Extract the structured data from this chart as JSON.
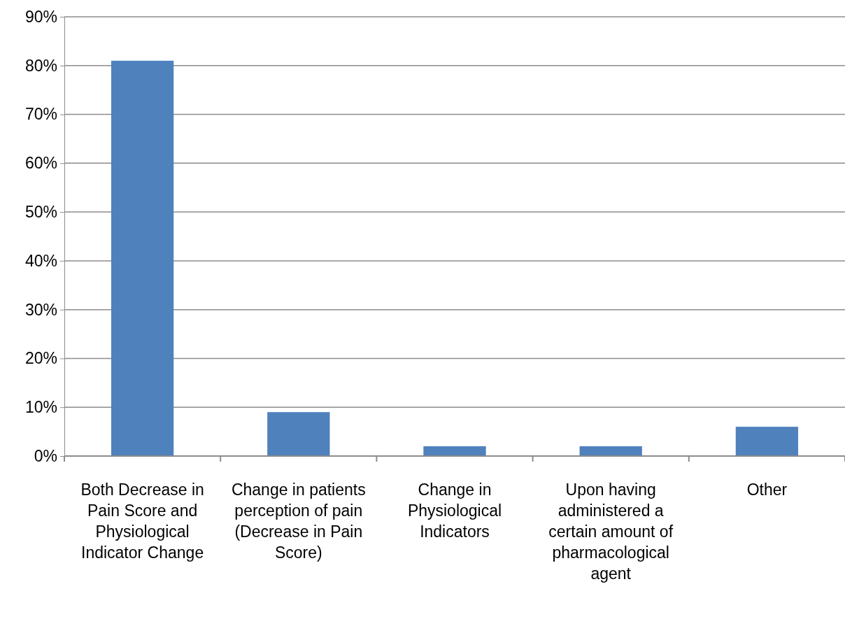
{
  "chart_data": {
    "type": "bar",
    "categories": [
      "Both Decrease in Pain Score and Physiological Indicator Change",
      "Change in patients perception of pain (Decrease in Pain Score)",
      "Change in Physiological Indicators",
      "Upon having administered a certain amount of pharmacological agent",
      "Other"
    ],
    "values": [
      81,
      9,
      2,
      2,
      6
    ],
    "color": "#4f81bd",
    "ylim": [
      0,
      90
    ],
    "yticks": [
      {
        "value": 0,
        "label": "0%"
      },
      {
        "value": 10,
        "label": "10%"
      },
      {
        "value": 20,
        "label": "20%"
      },
      {
        "value": 30,
        "label": "30%"
      },
      {
        "value": 40,
        "label": "40%"
      },
      {
        "value": 50,
        "label": "50%"
      },
      {
        "value": 60,
        "label": "60%"
      },
      {
        "value": 70,
        "label": "70%"
      },
      {
        "value": 80,
        "label": "80%"
      },
      {
        "value": 90,
        "label": "90%"
      }
    ],
    "grid": "y"
  }
}
